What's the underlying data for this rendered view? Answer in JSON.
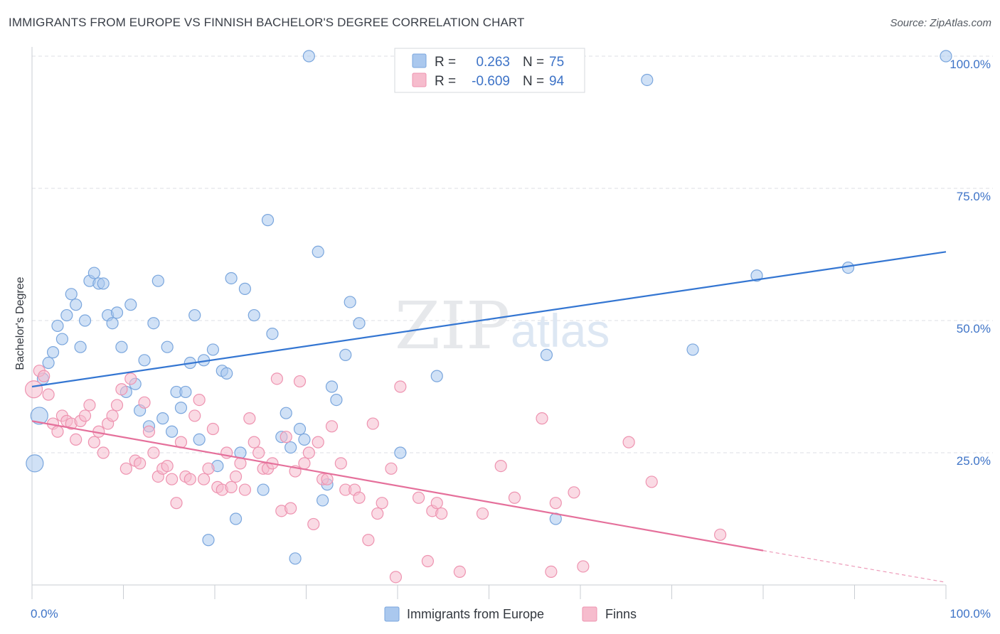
{
  "title": "IMMIGRANTS FROM EUROPE VS FINNISH BACHELOR'S DEGREE CORRELATION CHART",
  "source": "Source: ZipAtlas.com",
  "watermark": {
    "zip": "ZIP",
    "atlas": "atlas"
  },
  "colors": {
    "blue_fill": "#aac8ee",
    "blue_stroke": "#7aa6dd",
    "blue_line": "#3476d2",
    "pink_fill": "#f6bccd",
    "pink_stroke": "#ee93b0",
    "pink_line": "#e5709b",
    "value_text": "#3d73c7",
    "grid": "#dcdfe4"
  },
  "legend_top": {
    "rows": [
      {
        "r_label": "R =",
        "r_value": "0.263",
        "n_label": "N =",
        "n_value": "75",
        "series": "blue"
      },
      {
        "r_label": "R =",
        "r_value": "-0.609",
        "n_label": "N =",
        "n_value": "94",
        "series": "pink"
      }
    ]
  },
  "chart_data": {
    "type": "scatter",
    "title": "IMMIGRANTS FROM EUROPE VS FINNISH BACHELOR'S DEGREE CORRELATION CHART",
    "xlabel": "",
    "ylabel": "Bachelor's Degree",
    "xlim": [
      0,
      100
    ],
    "ylim": [
      0,
      100
    ],
    "x_tick_labels": [
      "0.0%",
      "100.0%"
    ],
    "y_tick_labels": [
      "25.0%",
      "50.0%",
      "75.0%",
      "100.0%"
    ],
    "y_ticks": [
      25,
      50,
      75,
      100
    ],
    "grid": true,
    "legend_position": "bottom-center",
    "series": [
      {
        "name": "Immigrants from Europe",
        "color": "blue",
        "R": 0.263,
        "N": 75,
        "trend": {
          "x0": 0,
          "y0": 37.5,
          "x1": 100,
          "y1": 63.0
        },
        "points": [
          [
            0.3,
            23.0
          ],
          [
            0.8,
            32.0
          ],
          [
            1.2,
            39.0
          ],
          [
            1.8,
            42.0
          ],
          [
            2.3,
            44.0
          ],
          [
            2.8,
            49.0
          ],
          [
            3.3,
            46.5
          ],
          [
            3.8,
            51.0
          ],
          [
            4.3,
            55.0
          ],
          [
            4.8,
            53.0
          ],
          [
            5.3,
            45.0
          ],
          [
            5.8,
            50.0
          ],
          [
            6.3,
            57.5
          ],
          [
            6.8,
            59.0
          ],
          [
            7.3,
            57.0
          ],
          [
            7.8,
            57.0
          ],
          [
            8.3,
            51.0
          ],
          [
            8.8,
            49.5
          ],
          [
            9.3,
            51.5
          ],
          [
            9.8,
            45.0
          ],
          [
            10.3,
            36.5
          ],
          [
            10.8,
            53.0
          ],
          [
            11.3,
            38.0
          ],
          [
            11.8,
            33.0
          ],
          [
            12.3,
            42.5
          ],
          [
            12.8,
            30.0
          ],
          [
            13.3,
            49.5
          ],
          [
            13.8,
            57.5
          ],
          [
            14.3,
            31.5
          ],
          [
            14.8,
            45.0
          ],
          [
            15.3,
            29.0
          ],
          [
            15.8,
            36.5
          ],
          [
            16.3,
            33.5
          ],
          [
            16.8,
            36.5
          ],
          [
            17.3,
            42.0
          ],
          [
            17.8,
            51.0
          ],
          [
            18.3,
            27.5
          ],
          [
            18.8,
            42.5
          ],
          [
            19.3,
            8.5
          ],
          [
            19.8,
            44.5
          ],
          [
            20.3,
            22.5
          ],
          [
            20.8,
            40.5
          ],
          [
            21.3,
            40.0
          ],
          [
            21.8,
            58.0
          ],
          [
            22.3,
            12.5
          ],
          [
            22.8,
            25.0
          ],
          [
            23.3,
            56.0
          ],
          [
            24.3,
            51.0
          ],
          [
            25.3,
            18.0
          ],
          [
            25.8,
            69.0
          ],
          [
            26.3,
            47.5
          ],
          [
            27.3,
            28.0
          ],
          [
            27.8,
            32.5
          ],
          [
            28.3,
            26.0
          ],
          [
            28.8,
            5.0
          ],
          [
            29.3,
            29.5
          ],
          [
            29.8,
            27.5
          ],
          [
            30.3,
            100.0
          ],
          [
            31.3,
            63.0
          ],
          [
            31.8,
            16.0
          ],
          [
            32.3,
            19.0
          ],
          [
            32.8,
            37.5
          ],
          [
            33.3,
            35.0
          ],
          [
            34.3,
            43.5
          ],
          [
            34.8,
            53.5
          ],
          [
            35.8,
            49.5
          ],
          [
            40.3,
            25.0
          ],
          [
            44.3,
            39.5
          ],
          [
            56.3,
            43.5
          ],
          [
            57.3,
            12.5
          ],
          [
            67.3,
            95.5
          ],
          [
            72.3,
            44.5
          ],
          [
            79.3,
            58.5
          ],
          [
            89.3,
            60.0
          ],
          [
            100.0,
            100.0
          ]
        ]
      },
      {
        "name": "Finns",
        "color": "pink",
        "R": -0.609,
        "N": 94,
        "trend": {
          "x0": 0,
          "y0": 31.0,
          "x1": 80,
          "y1": 6.5,
          "x1_dashed_end": 100,
          "y1_dashed_end": 0.5
        },
        "points": [
          [
            0.2,
            37.0
          ],
          [
            0.8,
            40.5
          ],
          [
            1.3,
            39.5
          ],
          [
            1.8,
            36.0
          ],
          [
            2.3,
            30.5
          ],
          [
            2.8,
            29.0
          ],
          [
            3.3,
            32.0
          ],
          [
            3.8,
            31.0
          ],
          [
            4.3,
            30.5
          ],
          [
            4.8,
            27.5
          ],
          [
            5.3,
            31.0
          ],
          [
            5.8,
            32.0
          ],
          [
            6.3,
            34.0
          ],
          [
            6.8,
            27.0
          ],
          [
            7.3,
            29.0
          ],
          [
            7.8,
            25.0
          ],
          [
            8.3,
            30.5
          ],
          [
            8.8,
            32.0
          ],
          [
            9.3,
            34.0
          ],
          [
            9.8,
            37.0
          ],
          [
            10.3,
            22.0
          ],
          [
            10.8,
            39.0
          ],
          [
            11.3,
            23.5
          ],
          [
            11.8,
            23.0
          ],
          [
            12.3,
            34.5
          ],
          [
            12.8,
            29.0
          ],
          [
            13.3,
            25.0
          ],
          [
            13.8,
            20.5
          ],
          [
            14.3,
            22.0
          ],
          [
            14.8,
            22.5
          ],
          [
            15.3,
            20.0
          ],
          [
            15.8,
            15.5
          ],
          [
            16.3,
            27.0
          ],
          [
            16.8,
            20.5
          ],
          [
            17.3,
            20.0
          ],
          [
            17.8,
            32.0
          ],
          [
            18.3,
            35.0
          ],
          [
            18.8,
            20.0
          ],
          [
            19.3,
            22.0
          ],
          [
            19.8,
            29.5
          ],
          [
            20.3,
            18.5
          ],
          [
            20.8,
            18.0
          ],
          [
            21.3,
            25.0
          ],
          [
            21.8,
            18.5
          ],
          [
            22.3,
            20.5
          ],
          [
            22.8,
            23.0
          ],
          [
            23.3,
            18.0
          ],
          [
            23.8,
            31.5
          ],
          [
            24.3,
            27.0
          ],
          [
            24.8,
            25.0
          ],
          [
            25.3,
            22.0
          ],
          [
            25.8,
            22.0
          ],
          [
            26.3,
            23.0
          ],
          [
            26.8,
            39.0
          ],
          [
            27.3,
            14.0
          ],
          [
            27.8,
            28.0
          ],
          [
            28.3,
            14.5
          ],
          [
            28.8,
            21.5
          ],
          [
            29.3,
            38.5
          ],
          [
            29.8,
            23.0
          ],
          [
            30.3,
            25.0
          ],
          [
            30.8,
            11.5
          ],
          [
            31.3,
            27.0
          ],
          [
            31.8,
            20.0
          ],
          [
            32.3,
            20.0
          ],
          [
            32.8,
            30.0
          ],
          [
            33.8,
            23.0
          ],
          [
            34.3,
            18.0
          ],
          [
            35.3,
            18.0
          ],
          [
            35.8,
            16.5
          ],
          [
            36.8,
            8.5
          ],
          [
            37.3,
            30.5
          ],
          [
            37.8,
            13.5
          ],
          [
            38.3,
            15.5
          ],
          [
            39.3,
            22.0
          ],
          [
            39.8,
            1.5
          ],
          [
            40.3,
            37.5
          ],
          [
            42.3,
            16.5
          ],
          [
            43.3,
            4.5
          ],
          [
            43.8,
            14.0
          ],
          [
            44.3,
            15.5
          ],
          [
            44.8,
            13.5
          ],
          [
            46.8,
            2.5
          ],
          [
            49.3,
            13.5
          ],
          [
            51.3,
            22.5
          ],
          [
            52.8,
            16.5
          ],
          [
            55.8,
            31.5
          ],
          [
            56.8,
            2.5
          ],
          [
            57.3,
            15.5
          ],
          [
            59.3,
            17.5
          ],
          [
            60.3,
            3.5
          ],
          [
            65.3,
            27.0
          ],
          [
            67.8,
            19.5
          ],
          [
            75.3,
            9.5
          ]
        ]
      }
    ]
  }
}
